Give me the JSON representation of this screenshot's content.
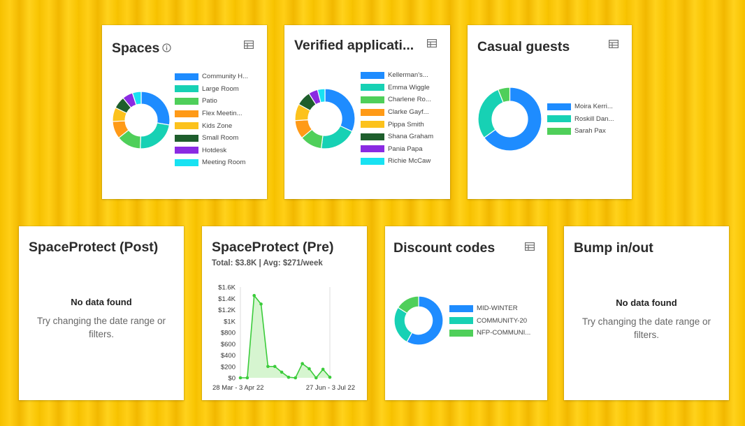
{
  "colors": {
    "blue": "#1e8cff",
    "teal": "#17d1b4",
    "green": "#4fcf5a",
    "orange": "#ff9a17",
    "yellow": "#fcc21c",
    "darkgreen": "#1e5e2c",
    "purple": "#8a2be2",
    "cyan": "#18e2f2",
    "line": "#3bcc3b",
    "fill": "#c8f2c0"
  },
  "icons": {
    "table": "table-icon",
    "info": "info-icon"
  },
  "spaces": {
    "title": "Spaces",
    "chart_data": {
      "type": "pie",
      "labels": [
        "Community H...",
        "Large Room",
        "Patio",
        "Flex Meetin...",
        "Kids Zone",
        "Small Room",
        "Hotdesk",
        "Meeting Room"
      ],
      "values": [
        28,
        23,
        14,
        10,
        8,
        7,
        6,
        5
      ],
      "colors": [
        "#1e8cff",
        "#17d1b4",
        "#4fcf5a",
        "#ff9a17",
        "#fcc21c",
        "#1e5e2c",
        "#8a2be2",
        "#18e2f2"
      ],
      "legend": "right"
    }
  },
  "verified": {
    "title": "Verified applicati...",
    "chart_data": {
      "type": "pie",
      "labels": [
        "Kellerman's...",
        "Emma Wiggle",
        "Charlene Ro...",
        "Clarke Gayf...",
        "Pippa Smith",
        "Shana Graham",
        "Pania Papa",
        "Richie McCaw"
      ],
      "values": [
        32,
        20,
        12,
        10,
        9,
        8,
        5,
        4
      ],
      "colors": [
        "#1e8cff",
        "#17d1b4",
        "#4fcf5a",
        "#ff9a17",
        "#fcc21c",
        "#1e5e2c",
        "#8a2be2",
        "#18e2f2"
      ],
      "legend": "right"
    }
  },
  "casual": {
    "title": "Casual guests",
    "chart_data": {
      "type": "pie",
      "labels": [
        "Moira Kerri...",
        "Roskill Dan...",
        "Sarah Pax"
      ],
      "values": [
        65,
        29,
        6
      ],
      "colors": [
        "#1e8cff",
        "#17d1b4",
        "#4fcf5a"
      ],
      "legend": "right"
    }
  },
  "sp_post": {
    "title": "SpaceProtect (Post)",
    "empty_title": "No data found",
    "empty_msg": "Try changing the date range or filters."
  },
  "sp_pre": {
    "title": "SpaceProtect (Pre)",
    "subtitle": "Total: $3.8K | Avg: $271/week",
    "chart_data": {
      "type": "area",
      "ylim": [
        0,
        1600
      ],
      "yticks": [
        "$0",
        "$200",
        "$400",
        "$600",
        "$800",
        "$1K",
        "$1.2K",
        "$1.4K",
        "$1.6K"
      ],
      "ytick_values": [
        0,
        200,
        400,
        600,
        800,
        1000,
        1200,
        1400,
        1600
      ],
      "x_start_label": "28 Mar - 3 Apr 22",
      "x_end_label": "27 Jun - 3 Jul 22",
      "values": [
        0,
        0,
        1450,
        1300,
        200,
        200,
        100,
        10,
        0,
        250,
        160,
        0,
        150,
        10
      ],
      "grid": "vertical-end"
    }
  },
  "discount": {
    "title": "Discount codes",
    "chart_data": {
      "type": "pie",
      "labels": [
        "MID-WINTER",
        "COMMUNITY-20",
        "NFP-COMMUNI..."
      ],
      "values": [
        58,
        26,
        16
      ],
      "colors": [
        "#1e8cff",
        "#17d1b4",
        "#4fcf5a"
      ],
      "legend": "right"
    }
  },
  "bump": {
    "title": "Bump in/out",
    "empty_title": "No data found",
    "empty_msg": "Try changing the date range or filters."
  }
}
